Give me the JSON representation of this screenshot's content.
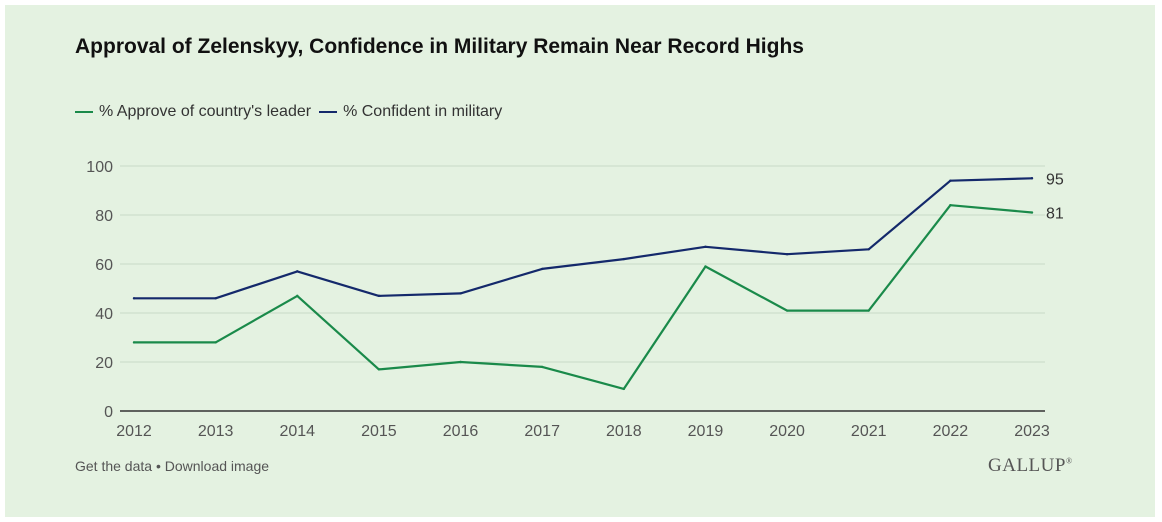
{
  "title": "Approval of Zelenskyy, Confidence in Military Remain Near Record Highs",
  "footer": {
    "get_data": "Get the data",
    "separator": " • ",
    "download": "Download image"
  },
  "logo": "GALLUP",
  "colors": {
    "background": "#e4f2e1",
    "approve": "#1a8a4a",
    "confident": "#14296b",
    "grid": "#c9d9c6",
    "axis": "#333333"
  },
  "chart_data": {
    "type": "line",
    "title": "Approval of Zelenskyy, Confidence in Military Remain Near Record Highs",
    "xlabel": "",
    "ylabel": "",
    "x": [
      "2012",
      "2013",
      "2014",
      "2015",
      "2016",
      "2017",
      "2018",
      "2019",
      "2020",
      "2021",
      "2022",
      "2023"
    ],
    "ylim": [
      0,
      100
    ],
    "yticks": [
      0,
      20,
      40,
      60,
      80,
      100
    ],
    "grid": true,
    "legend": "top-left",
    "series": [
      {
        "name": "% Approve of country's leader",
        "color": "#1a8a4a",
        "values": [
          28,
          28,
          47,
          17,
          20,
          18,
          9,
          59,
          41,
          41,
          84,
          81
        ],
        "end_label": "81"
      },
      {
        "name": "% Confident in military",
        "color": "#14296b",
        "values": [
          46,
          46,
          57,
          47,
          48,
          58,
          62,
          67,
          64,
          66,
          94,
          95
        ],
        "end_label": "95"
      }
    ]
  }
}
